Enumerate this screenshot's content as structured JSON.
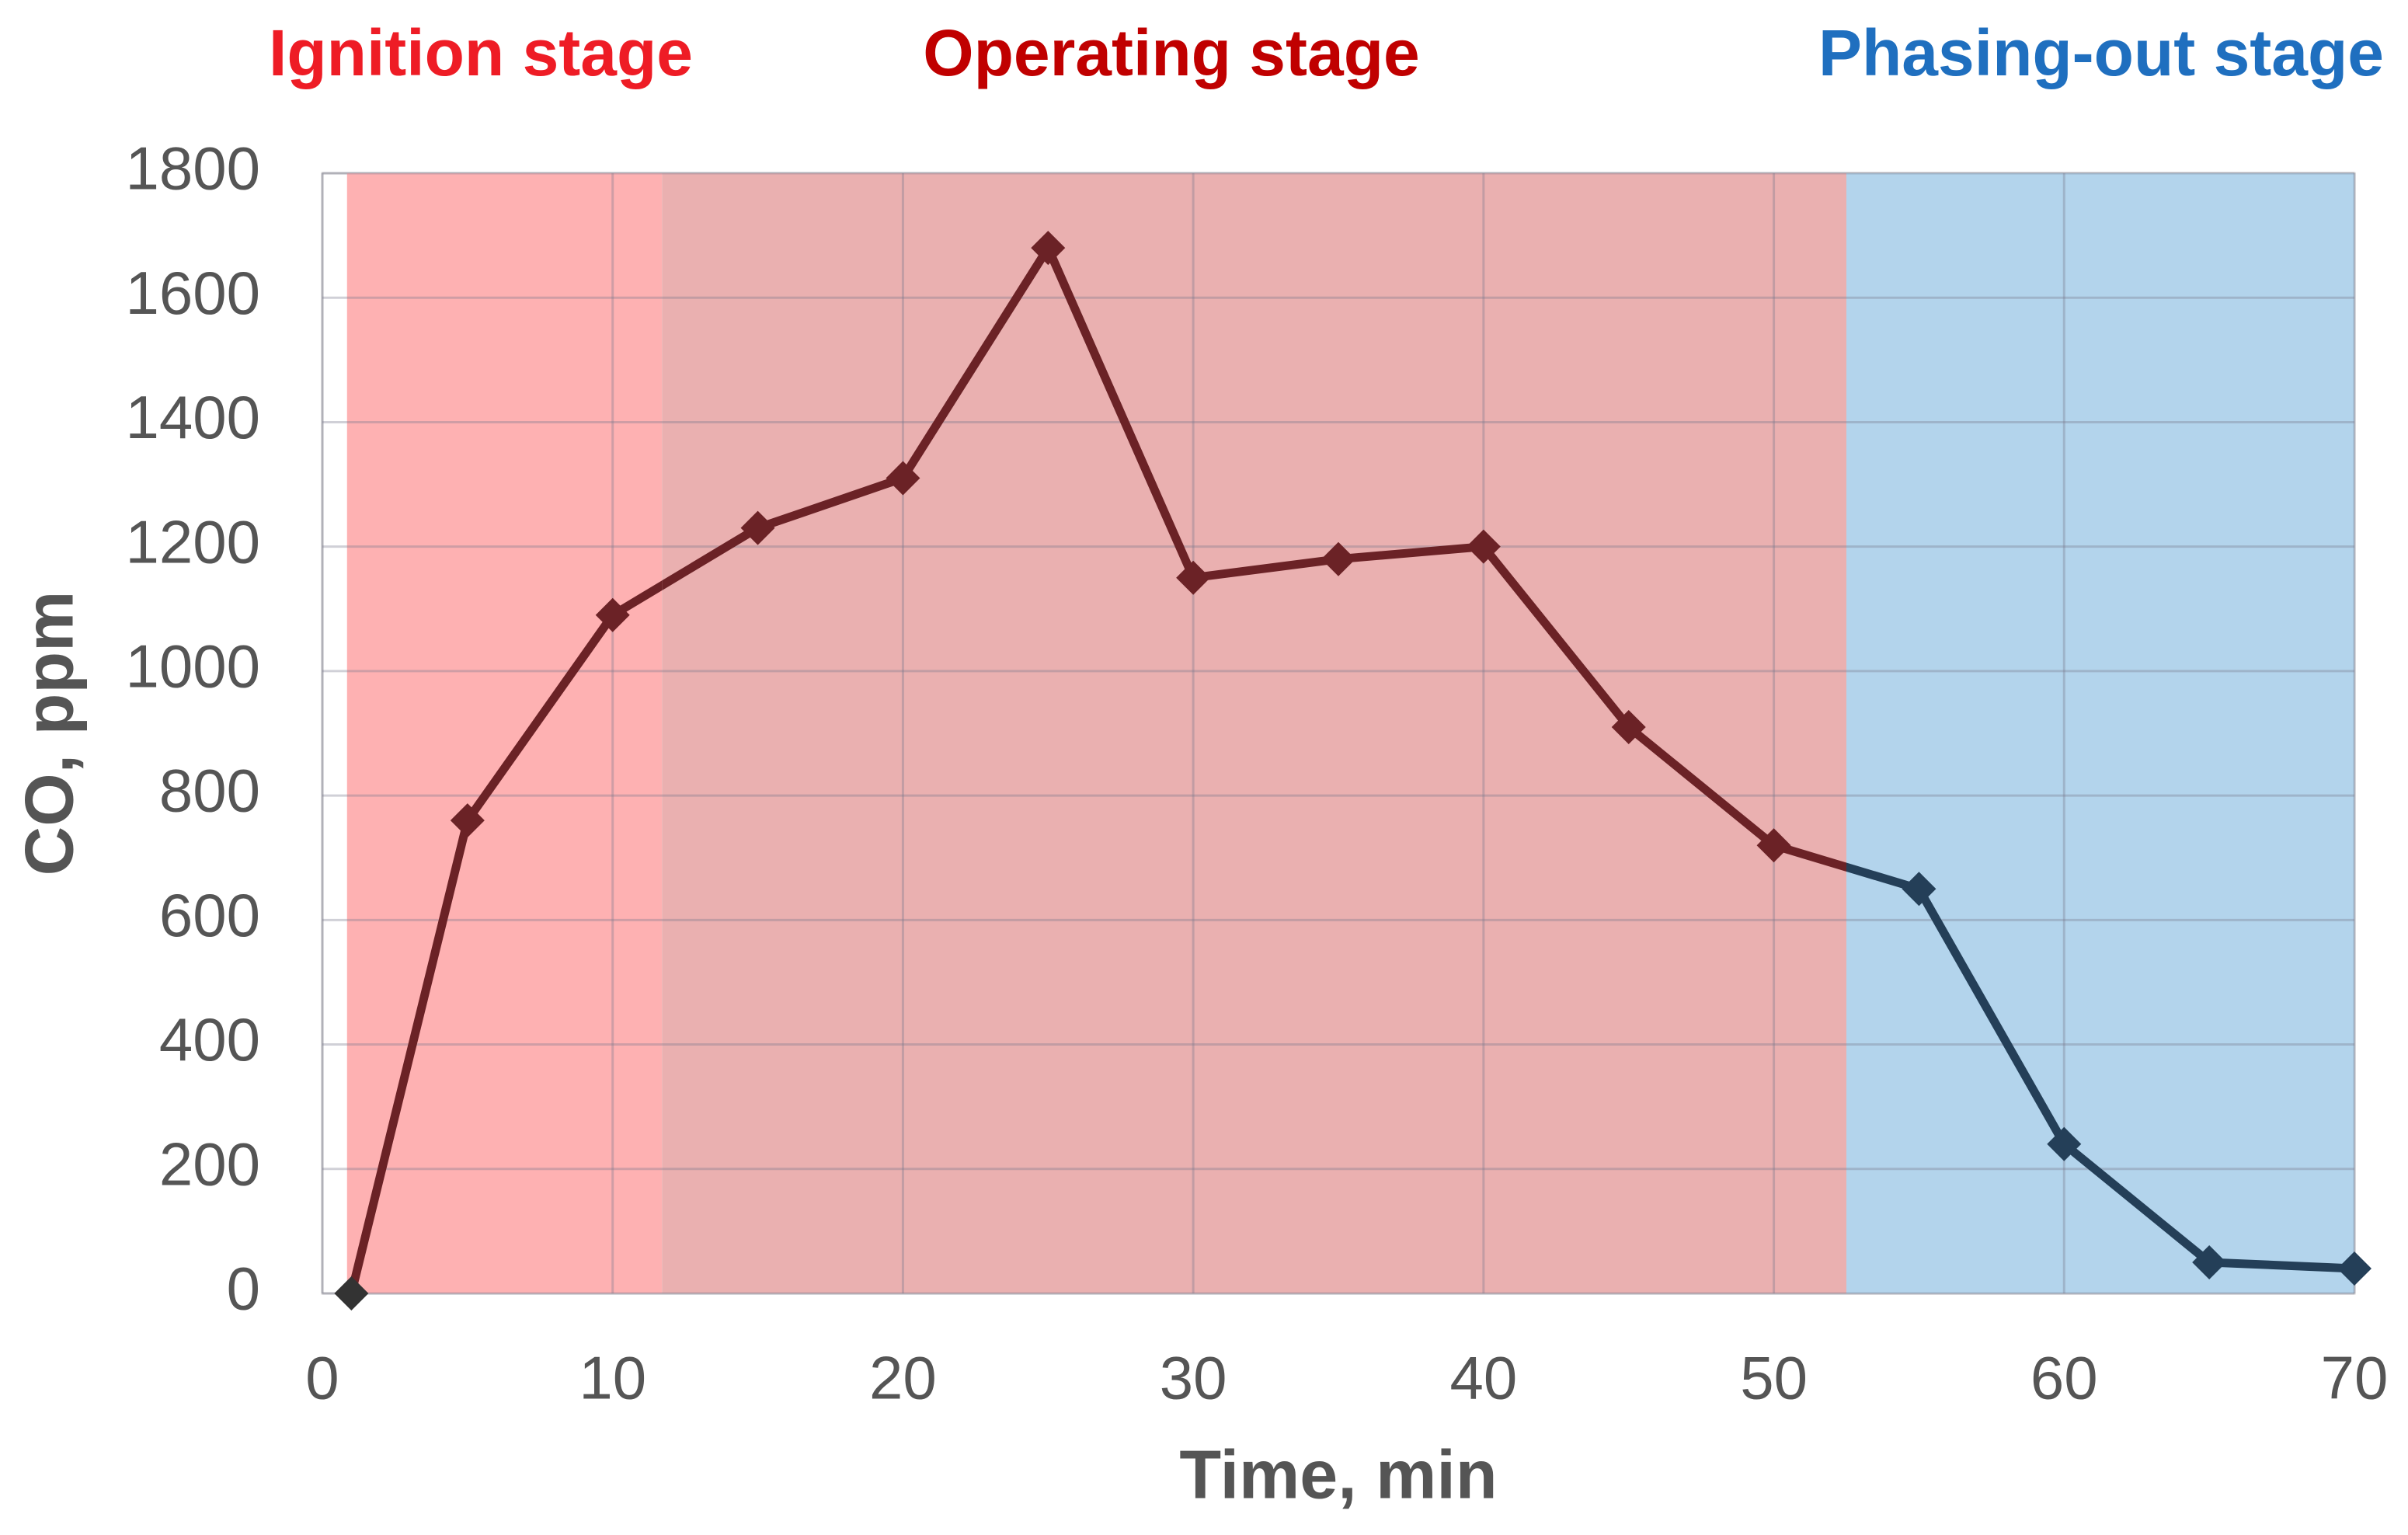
{
  "chart_data": {
    "type": "line",
    "x_label": "Time, min",
    "y_label": "CO, ppm",
    "x": [
      1,
      5,
      10,
      15,
      20,
      25,
      30,
      35,
      40,
      45,
      50,
      55,
      60,
      65,
      70
    ],
    "values": [
      0,
      760,
      1090,
      1230,
      1310,
      1680,
      1150,
      1180,
      1200,
      910,
      720,
      650,
      240,
      50,
      40
    ],
    "xlim": [
      0,
      70
    ],
    "xticks": [
      0,
      10,
      20,
      30,
      40,
      50,
      60,
      70
    ],
    "ylim": [
      0,
      1800
    ],
    "yticks": [
      0,
      200,
      400,
      600,
      800,
      1000,
      1200,
      1400,
      1600,
      1800
    ],
    "grid": true,
    "stages": [
      {
        "label": "Ignition stage",
        "start": 0.85,
        "end": 11.7,
        "fill": "#feb1b2",
        "label_color": "#ee1c25",
        "line_color": "#6b2226"
      },
      {
        "label": "Operating stage",
        "start": 11.7,
        "end": 52.5,
        "fill": "#eab0b0",
        "label_color": "#c00000",
        "line_color": "#6b2226"
      },
      {
        "label": "Phasing-out stage",
        "start": 52.5,
        "end": 70,
        "fill": "#b3d4ec",
        "label_color": "#1f6fbf",
        "line_color": "#243f58"
      }
    ]
  }
}
